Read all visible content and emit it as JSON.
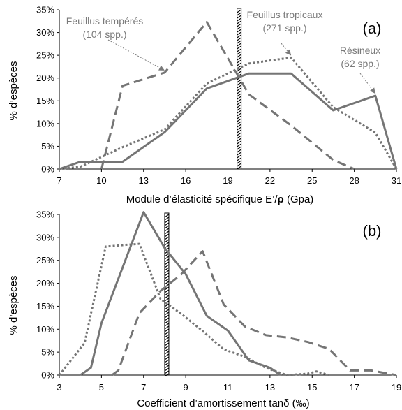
{
  "colors": {
    "series": "#757575",
    "axis": "#000000",
    "annotation": "#7a7a7a",
    "threshold": "#000000"
  },
  "chart_data": [
    {
      "panel_label": "(a)",
      "type": "line",
      "xlabel_prefix": "Module d’élasticité spécifique E’/",
      "xlabel_rho": "ρ",
      "xlabel_suffix": " (Gpa)",
      "ylabel": "% d’espèces",
      "xlim": [
        7,
        31
      ],
      "ylim": [
        0,
        35
      ],
      "x_ticks": [
        7,
        10,
        13,
        16,
        19,
        22,
        25,
        28,
        31
      ],
      "y_ticks": [
        0,
        5,
        10,
        15,
        20,
        25,
        30,
        35
      ],
      "y_tick_labels": [
        "0%",
        "5%",
        "10%",
        "15%",
        "20%",
        "25%",
        "30%",
        "35%"
      ],
      "threshold_x": 19.8,
      "series": [
        {
          "style": "dashed",
          "points": [
            [
              10.0,
              0
            ],
            [
              11.5,
              18.3
            ],
            [
              14.5,
              21.2
            ],
            [
              17.5,
              32.3
            ],
            [
              20.5,
              16.4
            ],
            [
              23.5,
              9.6
            ],
            [
              26.5,
              2.0
            ],
            [
              28.0,
              0
            ]
          ]
        },
        {
          "style": "dotted",
          "points": [
            [
              7.0,
              0
            ],
            [
              8.5,
              0.5
            ],
            [
              11.5,
              4.8
            ],
            [
              14.5,
              8.7
            ],
            [
              17.5,
              18.8
            ],
            [
              20.5,
              23.2
            ],
            [
              23.5,
              24.5
            ],
            [
              26.5,
              13.6
            ],
            [
              29.5,
              8.0
            ],
            [
              31.0,
              0
            ]
          ]
        },
        {
          "style": "solid",
          "points": [
            [
              7.0,
              0
            ],
            [
              8.5,
              1.6
            ],
            [
              11.5,
              1.6
            ],
            [
              14.5,
              8.1
            ],
            [
              17.5,
              17.7
            ],
            [
              20.5,
              21.0
            ],
            [
              23.5,
              21.0
            ],
            [
              26.5,
              12.9
            ],
            [
              29.5,
              16.1
            ],
            [
              31.0,
              0
            ]
          ]
        }
      ],
      "annotations": [
        {
          "lines": [
            "Feuillus tempérés",
            "(104 spp.)"
          ],
          "arrow_to": [
            14.5,
            21.2
          ]
        },
        {
          "lines": [
            "Feuillus tropicaux",
            "(271 spp.)"
          ],
          "arrow_to": [
            23.5,
            24.5
          ]
        },
        {
          "lines": [
            "Résineux",
            "(62 spp.)"
          ],
          "arrow_to": [
            29.5,
            16.1
          ]
        }
      ]
    },
    {
      "panel_label": "(b)",
      "type": "line",
      "xlabel": "Coefficient d’amortissement tanδ (‰)",
      "ylabel": "% d’espèces",
      "xlim": [
        3,
        19
      ],
      "ylim": [
        0,
        35
      ],
      "x_ticks": [
        3,
        5,
        7,
        9,
        11,
        13,
        15,
        17,
        19
      ],
      "y_ticks": [
        0,
        5,
        10,
        15,
        20,
        25,
        30,
        35
      ],
      "y_tick_labels": [
        "0%",
        "5%",
        "10%",
        "15%",
        "20%",
        "25%",
        "30%",
        "35%"
      ],
      "threshold_x": 8.1,
      "series": [
        {
          "style": "dashed",
          "points": [
            [
              5.5,
              0
            ],
            [
              5.8,
              1.0
            ],
            [
              6.8,
              13.5
            ],
            [
              7.8,
              18.3
            ],
            [
              8.8,
              22.0
            ],
            [
              9.8,
              27.0
            ],
            [
              10.8,
              15.4
            ],
            [
              11.8,
              10.6
            ],
            [
              12.8,
              8.7
            ],
            [
              13.8,
              8.2
            ],
            [
              14.8,
              7.2
            ],
            [
              15.8,
              5.7
            ],
            [
              16.8,
              1.0
            ],
            [
              17.8,
              1.0
            ],
            [
              19.0,
              0
            ]
          ]
        },
        {
          "style": "dotted",
          "points": [
            [
              3.0,
              0
            ],
            [
              4.2,
              7.0
            ],
            [
              5.2,
              28.0
            ],
            [
              6.2,
              28.4
            ],
            [
              6.8,
              28.6
            ],
            [
              7.8,
              16.6
            ],
            [
              8.8,
              13.3
            ],
            [
              9.8,
              9.6
            ],
            [
              10.8,
              5.6
            ],
            [
              11.8,
              4.0
            ],
            [
              12.8,
              1.6
            ],
            [
              13.8,
              0
            ],
            [
              14.8,
              0.3
            ],
            [
              15.2,
              0.8
            ],
            [
              15.8,
              0
            ]
          ]
        },
        {
          "style": "solid",
          "points": [
            [
              4.0,
              0
            ],
            [
              4.5,
              1.6
            ],
            [
              5.0,
              11.3
            ],
            [
              7.0,
              35.5
            ],
            [
              8.0,
              27.7
            ],
            [
              9.0,
              22.0
            ],
            [
              10.0,
              12.9
            ],
            [
              11.0,
              9.7
            ],
            [
              12.0,
              3.2
            ],
            [
              13.0,
              1.6
            ],
            [
              13.5,
              0
            ]
          ]
        }
      ]
    }
  ]
}
